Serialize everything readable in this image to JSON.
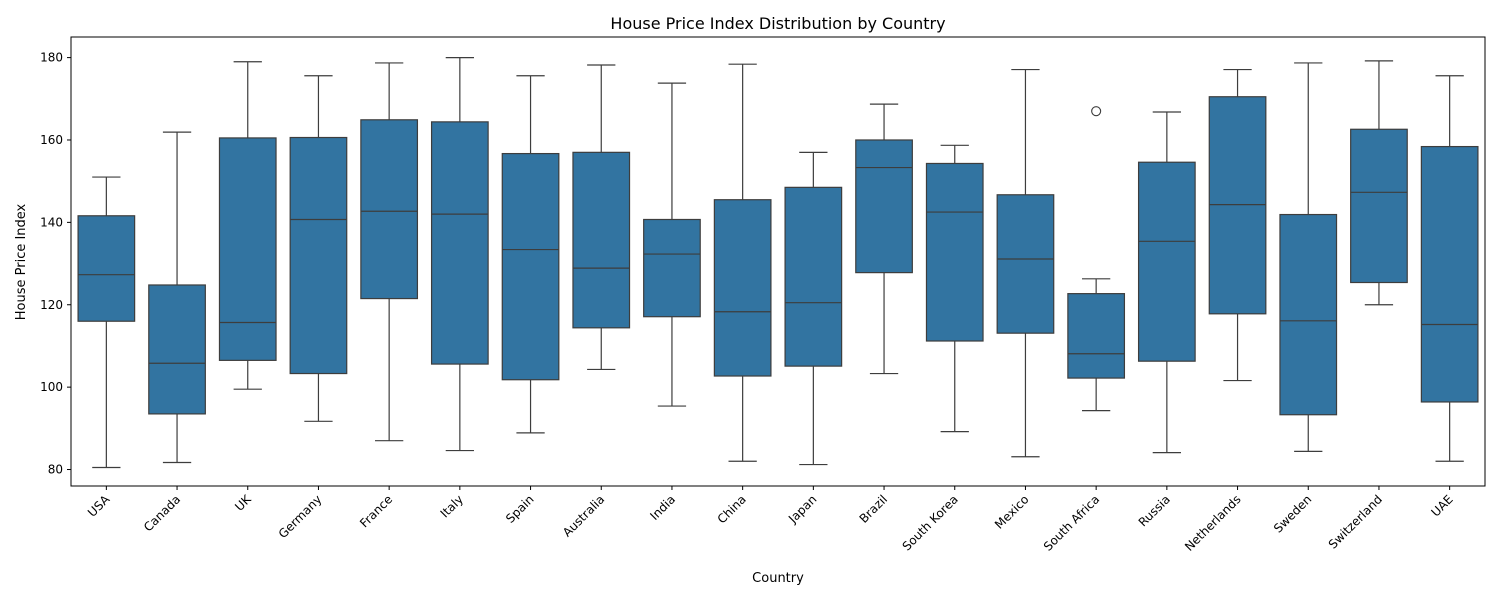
{
  "chart_data": {
    "type": "box",
    "title": "House Price Index Distribution by Country",
    "xlabel": "Country",
    "ylabel": "House Price Index",
    "ylim": [
      76,
      185
    ],
    "yticks": [
      "80",
      "100",
      "120",
      "140",
      "160",
      "180"
    ],
    "grid": false,
    "box_color": "#3274a1",
    "line_color": "#3d3d3d",
    "categories": [
      "USA",
      "Canada",
      "UK",
      "Germany",
      "France",
      "Italy",
      "Spain",
      "Australia",
      "India",
      "China",
      "Japan",
      "Brazil",
      "South Korea",
      "Mexico",
      "South Africa",
      "Russia",
      "Netherlands",
      "Sweden",
      "Switzerland",
      "UAE"
    ],
    "boxes": [
      {
        "min": 80.5,
        "q1": 116,
        "median": 127.3,
        "q3": 141.6,
        "max": 151,
        "outliers": []
      },
      {
        "min": 81.7,
        "q1": 93.5,
        "median": 105.8,
        "q3": 124.8,
        "max": 161.9,
        "outliers": []
      },
      {
        "min": 99.5,
        "q1": 106.5,
        "median": 115.7,
        "q3": 160.5,
        "max": 179,
        "outliers": []
      },
      {
        "min": 91.7,
        "q1": 103.3,
        "median": 140.7,
        "q3": 160.6,
        "max": 175.6,
        "outliers": []
      },
      {
        "min": 87,
        "q1": 121.5,
        "median": 142.7,
        "q3": 164.9,
        "max": 178.7,
        "outliers": []
      },
      {
        "min": 84.6,
        "q1": 105.6,
        "median": 142,
        "q3": 164.4,
        "max": 180,
        "outliers": []
      },
      {
        "min": 88.9,
        "q1": 101.8,
        "median": 133.4,
        "q3": 156.7,
        "max": 175.6,
        "outliers": []
      },
      {
        "min": 104.3,
        "q1": 114.4,
        "median": 128.9,
        "q3": 157,
        "max": 178.2,
        "outliers": []
      },
      {
        "min": 95.4,
        "q1": 117.1,
        "median": 132.3,
        "q3": 140.7,
        "max": 173.8,
        "outliers": []
      },
      {
        "min": 82,
        "q1": 102.7,
        "median": 118.3,
        "q3": 145.5,
        "max": 178.4,
        "outliers": []
      },
      {
        "min": 81.2,
        "q1": 105.1,
        "median": 120.5,
        "q3": 148.5,
        "max": 157,
        "outliers": []
      },
      {
        "min": 103.3,
        "q1": 127.8,
        "median": 153.3,
        "q3": 160,
        "max": 168.7,
        "outliers": []
      },
      {
        "min": 89.2,
        "q1": 111.2,
        "median": 142.5,
        "q3": 154.3,
        "max": 158.7,
        "outliers": []
      },
      {
        "min": 83.1,
        "q1": 113.1,
        "median": 131.1,
        "q3": 146.7,
        "max": 177.1,
        "outliers": []
      },
      {
        "min": 94.3,
        "q1": 102.2,
        "median": 108.1,
        "q3": 122.7,
        "max": 126.3,
        "outliers": [
          167
        ]
      },
      {
        "min": 84.1,
        "q1": 106.3,
        "median": 135.4,
        "q3": 154.6,
        "max": 166.8,
        "outliers": []
      },
      {
        "min": 101.6,
        "q1": 117.8,
        "median": 144.3,
        "q3": 170.5,
        "max": 177.1,
        "outliers": []
      },
      {
        "min": 84.4,
        "q1": 93.3,
        "median": 116.1,
        "q3": 141.9,
        "max": 178.7,
        "outliers": []
      },
      {
        "min": 120,
        "q1": 125.4,
        "median": 147.3,
        "q3": 162.6,
        "max": 179.2,
        "outliers": []
      },
      {
        "min": 82,
        "q1": 96.4,
        "median": 115.2,
        "q3": 158.4,
        "max": 175.6,
        "outliers": []
      }
    ]
  }
}
